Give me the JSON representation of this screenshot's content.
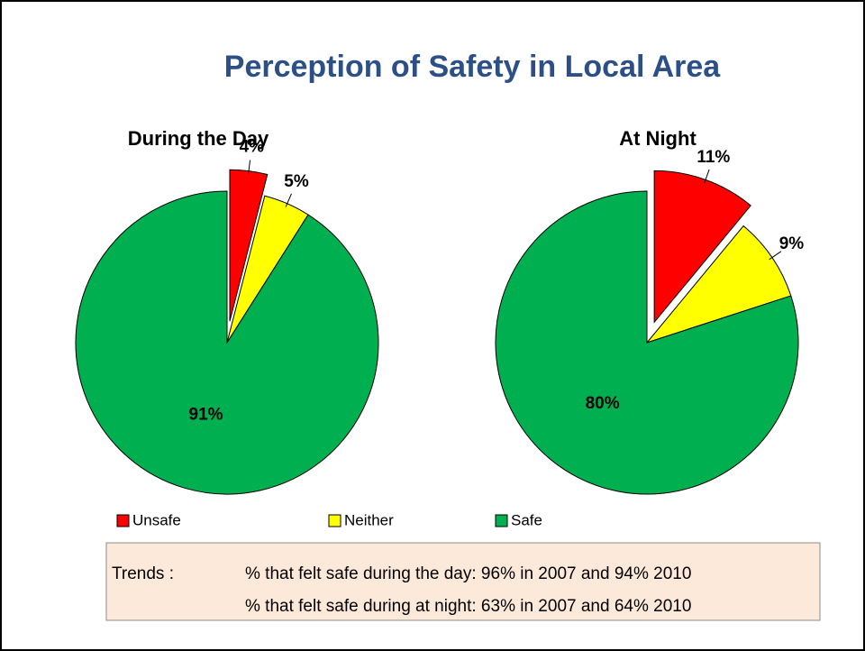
{
  "title": "Perception of Safety in Local Area",
  "chart_data": [
    {
      "type": "pie",
      "title": "During the Day",
      "categories": [
        "Unsafe",
        "Neither",
        "Safe"
      ],
      "values": [
        4,
        5,
        91
      ],
      "value_labels": [
        "4%",
        "5%",
        "91%"
      ],
      "colors": [
        "#ff0000",
        "#ffff00",
        "#00b050"
      ],
      "exploded": [
        0
      ]
    },
    {
      "type": "pie",
      "title": "At Night",
      "values": [
        11,
        9,
        80
      ],
      "value_labels": [
        "11%",
        "9%",
        "80%"
      ],
      "colors": [
        "#ff0000",
        "#ffff00",
        "#00b050"
      ],
      "exploded": [
        0
      ]
    }
  ],
  "notes": {
    "label": "Trends :",
    "lines": [
      "% that felt safe during the day:  96% in 2007 and 94% 2010",
      "% that felt safe during at night: 63% in 2007 and 64% 2010"
    ]
  }
}
